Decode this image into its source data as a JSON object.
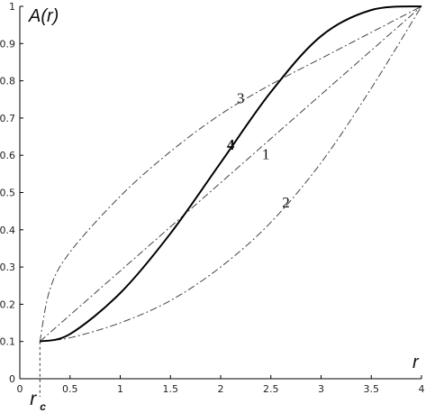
{
  "chart_data": {
    "type": "line",
    "ylabel": "A(r)",
    "xlabel": "r",
    "marker": {
      "main": "r",
      "sub": "c",
      "x": 0.2
    },
    "xlim": [
      0,
      4
    ],
    "ylim": [
      0,
      1
    ],
    "x_ticks": [
      "0",
      "0.5",
      "1",
      "1.5",
      "2",
      "2.5",
      "3",
      "3.5",
      "4"
    ],
    "y_ticks": [
      "0",
      "0.1",
      "0.2",
      "0.3",
      "0.4",
      "0.5",
      "0.6",
      "0.7",
      "0.8",
      "0.9",
      "1"
    ],
    "grid": false,
    "series": [
      {
        "label": "1",
        "style": "dash-dot",
        "color": "#444444",
        "x": [
          0.2,
          4.0
        ],
        "y": [
          0.1,
          1.0
        ]
      },
      {
        "label": "2",
        "style": "dash-dot",
        "color": "#444444",
        "x": [
          0.2,
          0.5,
          1.0,
          1.5,
          2.0,
          2.5,
          3.0,
          3.5,
          4.0
        ],
        "y": [
          0.1,
          0.11,
          0.15,
          0.21,
          0.3,
          0.42,
          0.58,
          0.78,
          1.0
        ]
      },
      {
        "label": "3",
        "style": "dash-dot",
        "color": "#444444",
        "x": [
          0.2,
          0.3,
          0.5,
          1.0,
          1.5,
          2.0,
          2.5,
          3.0,
          3.5,
          4.0
        ],
        "y": [
          0.1,
          0.24,
          0.34,
          0.49,
          0.61,
          0.71,
          0.79,
          0.86,
          0.93,
          1.0
        ]
      },
      {
        "label": "4",
        "style": "solid",
        "color": "#000000",
        "x": [
          0.2,
          0.5,
          1.0,
          1.5,
          2.0,
          2.5,
          3.0,
          3.5,
          4.0
        ],
        "y": [
          0.1,
          0.12,
          0.23,
          0.39,
          0.58,
          0.77,
          0.92,
          0.99,
          1.0
        ]
      }
    ],
    "curve_labels": [
      {
        "text": "3",
        "x": 2.2,
        "y": 0.74,
        "bold": false
      },
      {
        "text": "4",
        "x": 2.1,
        "y": 0.615,
        "bold": true
      },
      {
        "text": "1",
        "x": 2.45,
        "y": 0.59,
        "bold": false
      },
      {
        "text": "2",
        "x": 2.65,
        "y": 0.46,
        "bold": false
      }
    ]
  }
}
